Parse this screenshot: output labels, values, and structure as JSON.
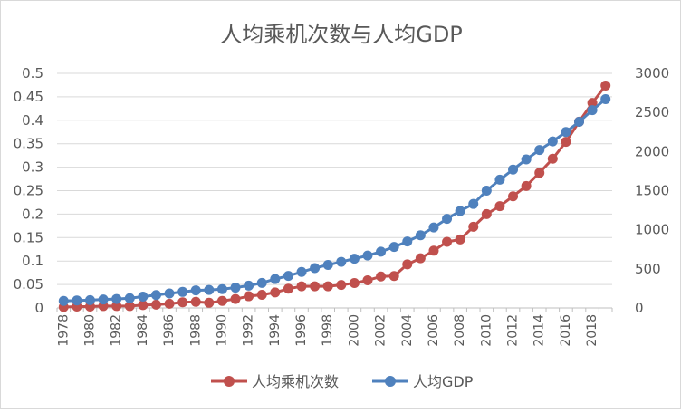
{
  "chart_data": {
    "type": "line",
    "title": "人均乘机次数与人均GDP",
    "xlabel": "",
    "ylabel": "",
    "y2label": "",
    "x": [
      1978,
      1979,
      1980,
      1981,
      1982,
      1983,
      1984,
      1985,
      1986,
      1987,
      1988,
      1989,
      1990,
      1991,
      1992,
      1993,
      1994,
      1995,
      1996,
      1997,
      1998,
      1999,
      2000,
      2001,
      2002,
      2003,
      2004,
      2005,
      2006,
      2007,
      2008,
      2009,
      2010,
      2011,
      2012,
      2013,
      2014,
      2015,
      2016,
      2017,
      2018,
      2019
    ],
    "x_tick_labels": [
      "1978",
      "1980",
      "1982",
      "1984",
      "1986",
      "1988",
      "1990",
      "1992",
      "1994",
      "1996",
      "1998",
      "2000",
      "2002",
      "2004",
      "2006",
      "2008",
      "2010",
      "2012",
      "2014",
      "2016",
      "2018"
    ],
    "ylim": [
      0,
      0.5
    ],
    "y_tick_labels": [
      "0",
      "0.05",
      "0.1",
      "0.15",
      "0.2",
      "0.25",
      "0.3",
      "0.35",
      "0.4",
      "0.45",
      "0.5"
    ],
    "y2lim": [
      0,
      3000
    ],
    "y2_tick_labels": [
      "0",
      "500",
      "1000",
      "1500",
      "2000",
      "2500",
      "3000"
    ],
    "legend_position": "bottom",
    "series": [
      {
        "name": "人均乘机次数",
        "axis": "left",
        "color": "#c0504d",
        "values": [
          0.002,
          0.003,
          0.003,
          0.004,
          0.004,
          0.004,
          0.006,
          0.007,
          0.009,
          0.012,
          0.013,
          0.011,
          0.015,
          0.019,
          0.025,
          0.028,
          0.033,
          0.041,
          0.046,
          0.046,
          0.046,
          0.049,
          0.053,
          0.059,
          0.067,
          0.068,
          0.093,
          0.106,
          0.122,
          0.141,
          0.146,
          0.173,
          0.2,
          0.217,
          0.238,
          0.26,
          0.288,
          0.318,
          0.354,
          0.397,
          0.437,
          0.474
        ]
      },
      {
        "name": "人均GDP",
        "axis": "right",
        "color": "#4f81bd",
        "values": [
          90,
          95,
          100,
          108,
          115,
          125,
          145,
          165,
          185,
          205,
          225,
          230,
          240,
          260,
          285,
          320,
          370,
          410,
          460,
          510,
          550,
          590,
          630,
          670,
          720,
          780,
          850,
          930,
          1030,
          1140,
          1240,
          1330,
          1500,
          1640,
          1770,
          1900,
          2020,
          2130,
          2250,
          2380,
          2530,
          2670
        ]
      }
    ]
  }
}
